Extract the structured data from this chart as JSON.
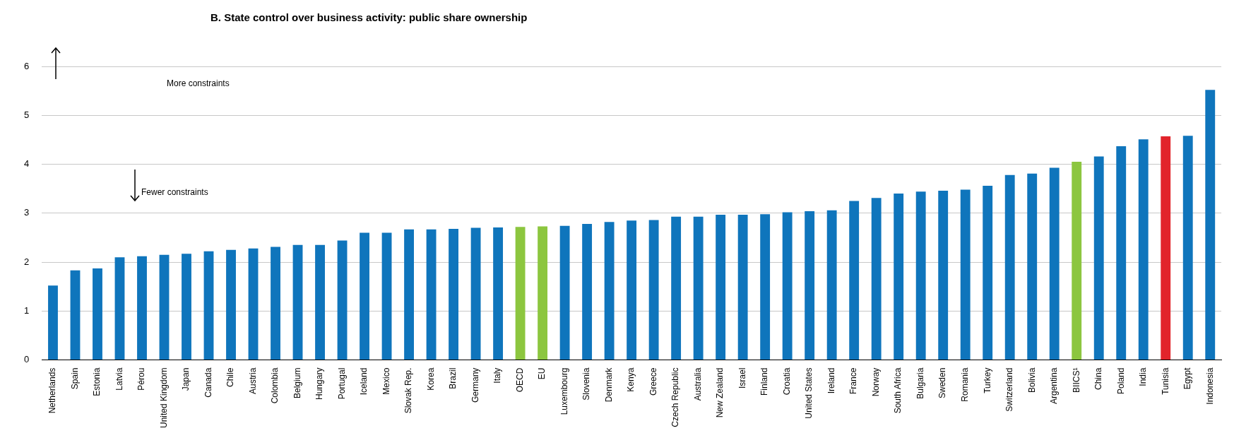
{
  "chart_data": {
    "type": "bar",
    "title": "B. State control over business activity: public share ownership",
    "categories": [
      "Netherlands",
      "Spain",
      "Estonia",
      "Latvia",
      "Pérou",
      "United Kingdom",
      "Japan",
      "Canada",
      "Chile",
      "Austria",
      "Colombia",
      "Belgium",
      "Hungary",
      "Portugal",
      "Iceland",
      "Mexico",
      "Slovak Rep.",
      "Korea",
      "Brazil",
      "Germany",
      "Italy",
      "OECD",
      "EU",
      "Luxembourg",
      "Slovenia",
      "Denmark",
      "Kenya",
      "Greece",
      "Czech Republic",
      "Australia",
      "New Zealand",
      "Israel",
      "Finland",
      "Croatia",
      "United States",
      "Ireland",
      "France",
      "Norway",
      "South Africa",
      "Bulgaria",
      "Sweden",
      "Romania",
      "Turkey",
      "Switzerland",
      "Bolivia",
      "Argentina",
      "BIICS¹",
      "China",
      "Poland",
      "India",
      "Tunisia",
      "Egypt",
      "Indonesia"
    ],
    "values": [
      1.52,
      1.83,
      1.87,
      2.1,
      2.12,
      2.15,
      2.17,
      2.22,
      2.25,
      2.28,
      2.31,
      2.35,
      2.35,
      2.44,
      2.6,
      2.6,
      2.67,
      2.67,
      2.68,
      2.7,
      2.71,
      2.72,
      2.73,
      2.74,
      2.78,
      2.82,
      2.85,
      2.86,
      2.93,
      2.93,
      2.97,
      2.97,
      2.98,
      3.02,
      3.04,
      3.06,
      3.25,
      3.31,
      3.4,
      3.44,
      3.46,
      3.48,
      3.56,
      3.78,
      3.81,
      3.93,
      4.05,
      4.16,
      4.37,
      4.51,
      4.57,
      4.58,
      5.52
    ],
    "colors": [
      "#0f75bc",
      "#0f75bc",
      "#0f75bc",
      "#0f75bc",
      "#0f75bc",
      "#0f75bc",
      "#0f75bc",
      "#0f75bc",
      "#0f75bc",
      "#0f75bc",
      "#0f75bc",
      "#0f75bc",
      "#0f75bc",
      "#0f75bc",
      "#0f75bc",
      "#0f75bc",
      "#0f75bc",
      "#0f75bc",
      "#0f75bc",
      "#0f75bc",
      "#0f75bc",
      "#8cc63f",
      "#8cc63f",
      "#0f75bc",
      "#0f75bc",
      "#0f75bc",
      "#0f75bc",
      "#0f75bc",
      "#0f75bc",
      "#0f75bc",
      "#0f75bc",
      "#0f75bc",
      "#0f75bc",
      "#0f75bc",
      "#0f75bc",
      "#0f75bc",
      "#0f75bc",
      "#0f75bc",
      "#0f75bc",
      "#0f75bc",
      "#0f75bc",
      "#0f75bc",
      "#0f75bc",
      "#0f75bc",
      "#0f75bc",
      "#0f75bc",
      "#8cc63f",
      "#0f75bc",
      "#0f75bc",
      "#0f75bc",
      "#e2242b",
      "#0f75bc",
      "#0f75bc"
    ],
    "ylim": [
      0,
      6
    ],
    "yticks": [
      0,
      1,
      2,
      3,
      4,
      5,
      6
    ],
    "grid": "y",
    "legend": false,
    "annotations": [
      "More constraints",
      "Fewer constraints"
    ]
  }
}
